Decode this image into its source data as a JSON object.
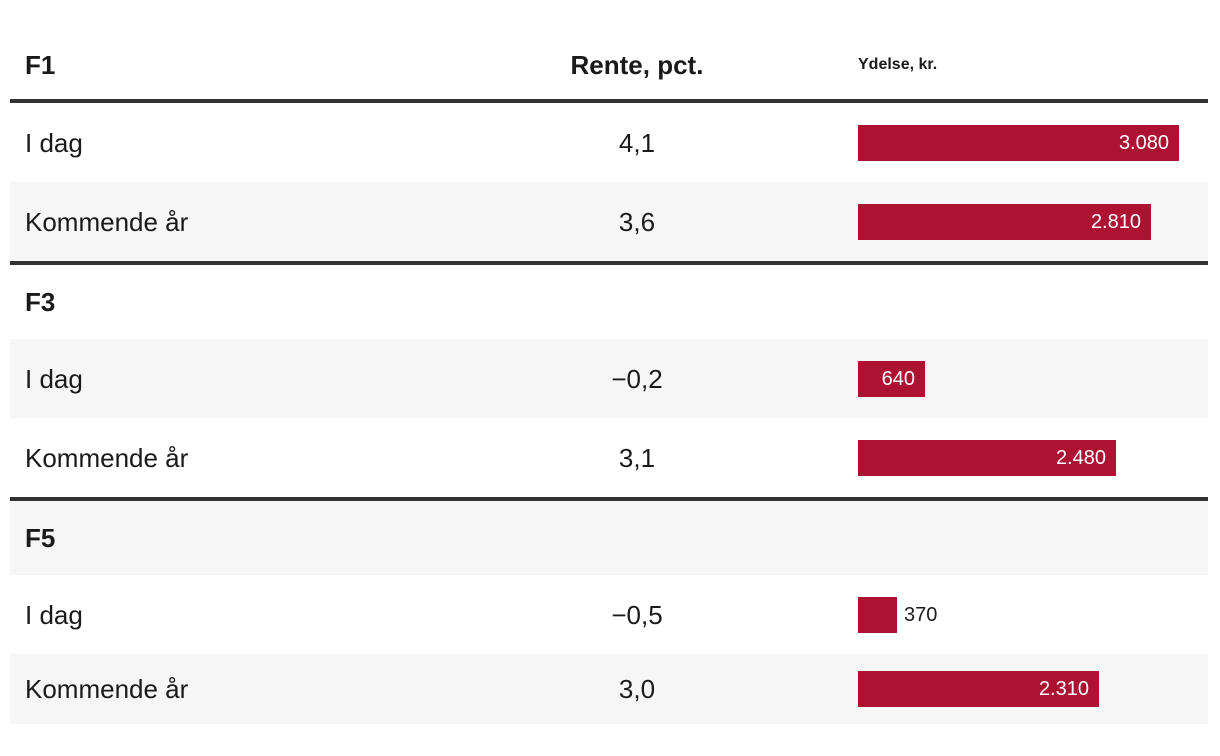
{
  "colors": {
    "bar": "#ad1232",
    "stripe": "#f6f6f6",
    "divider": "#323232",
    "text": "#1a1a1a"
  },
  "table": {
    "columns": {
      "rente": "Rente, pct.",
      "ydelse": "Ydelse, kr."
    },
    "sections": [
      {
        "name": "F1",
        "rows": [
          {
            "label": "I dag",
            "rente": "4,1",
            "ydelse": 3080,
            "ydelse_label": "3.080"
          },
          {
            "label": "Kommende år",
            "rente": "3,6",
            "ydelse": 2810,
            "ydelse_label": "2.810"
          }
        ]
      },
      {
        "name": "F3",
        "rows": [
          {
            "label": "I dag",
            "rente": "−0,2",
            "ydelse": 640,
            "ydelse_label": "640"
          },
          {
            "label": "Kommende år",
            "rente": "3,1",
            "ydelse": 2480,
            "ydelse_label": "2.480"
          }
        ]
      },
      {
        "name": "F5",
        "rows": [
          {
            "label": "I dag",
            "rente": "−0,5",
            "ydelse": 370,
            "ydelse_label": "370"
          },
          {
            "label": "Kommende år",
            "rente": "3,0",
            "ydelse": 2310,
            "ydelse_label": "2.310"
          }
        ]
      }
    ]
  },
  "chart_data": {
    "type": "bar",
    "orientation": "horizontal",
    "title": "",
    "value_axis_label": "Ydelse, kr.",
    "secondary_column_label": "Rente, pct.",
    "xlim": [
      0,
      3080
    ],
    "groups": [
      {
        "group": "F1",
        "categories": [
          "I dag",
          "Kommende år"
        ],
        "rente_pct": [
          4.1,
          3.6
        ],
        "ydelse_kr": [
          3080,
          2810
        ]
      },
      {
        "group": "F3",
        "categories": [
          "I dag",
          "Kommende år"
        ],
        "rente_pct": [
          -0.2,
          3.1
        ],
        "ydelse_kr": [
          640,
          2480
        ]
      },
      {
        "group": "F5",
        "categories": [
          "I dag",
          "Kommende år"
        ],
        "rente_pct": [
          -0.5,
          3.0
        ],
        "ydelse_kr": [
          370,
          2310
        ]
      }
    ],
    "bar_color": "#ad1232",
    "value_labels_shown": true
  }
}
